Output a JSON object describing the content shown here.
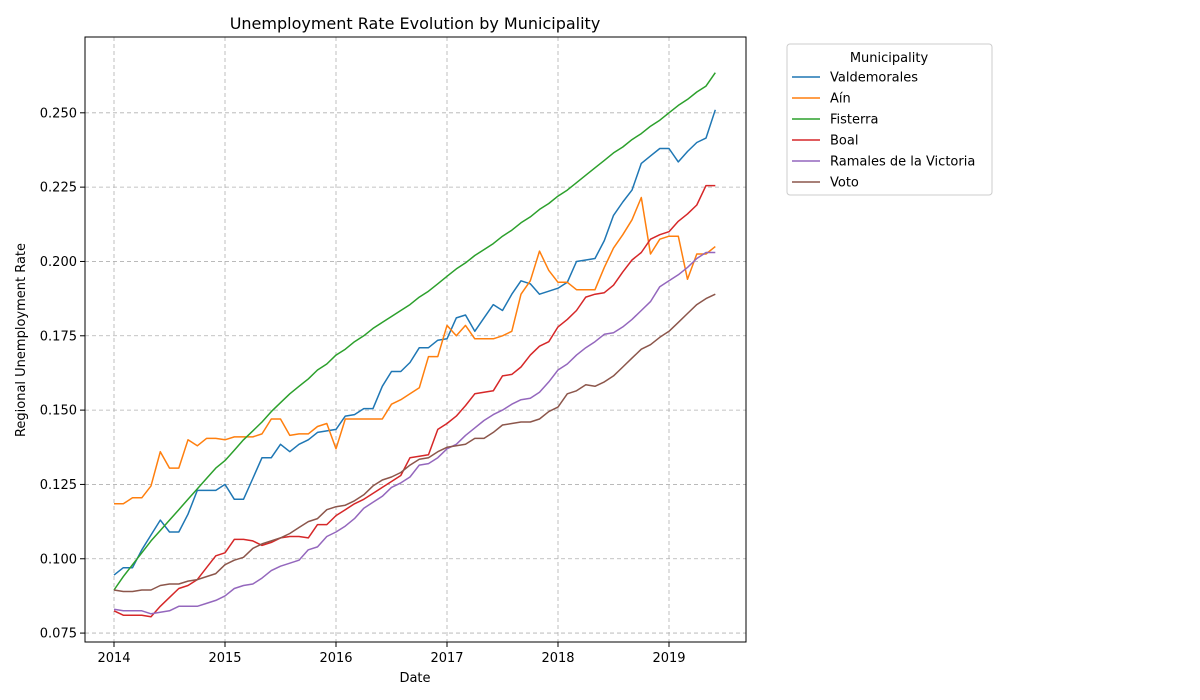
{
  "chart_data": {
    "type": "line",
    "title": "Unemployment Rate Evolution by Municipality",
    "xlabel": "Date",
    "ylabel": "Regional Unemployment Rate",
    "x_start": "2014-01",
    "x_end": "2019-06",
    "x_ticks": [
      "2014",
      "2015",
      "2016",
      "2017",
      "2018",
      "2019"
    ],
    "y_ticks": [
      "0.075",
      "0.100",
      "0.125",
      "0.150",
      "0.175",
      "0.200",
      "0.225",
      "0.250"
    ],
    "ylim": [
      0.072,
      0.2755
    ],
    "grid": true,
    "legend": {
      "title": "Municipality",
      "position": "outside-right"
    },
    "series": [
      {
        "name": "Valdemorales",
        "color": "#1f77b4",
        "values": [
          0.0945,
          0.097,
          0.097,
          0.103,
          0.108,
          0.113,
          0.109,
          0.109,
          0.115,
          0.123,
          0.123,
          0.123,
          0.125,
          0.12,
          0.12,
          0.127,
          0.134,
          0.134,
          0.1385,
          0.136,
          0.1385,
          0.14,
          0.1425,
          0.143,
          0.1435,
          0.148,
          0.1485,
          0.1505,
          0.1505,
          0.158,
          0.163,
          0.163,
          0.166,
          0.171,
          0.171,
          0.1735,
          0.174,
          0.181,
          0.182,
          0.1765,
          0.181,
          0.1855,
          0.1835,
          0.189,
          0.1935,
          0.1925,
          0.189,
          0.19,
          0.191,
          0.193,
          0.2,
          0.2005,
          0.201,
          0.207,
          0.2155,
          0.22,
          0.224,
          0.233,
          0.2355,
          0.238,
          0.238,
          0.2335,
          0.237,
          0.24,
          0.2415,
          0.251
        ]
      },
      {
        "name": "Aín",
        "color": "#ff7f0e",
        "values": [
          0.1185,
          0.1185,
          0.1205,
          0.1205,
          0.1245,
          0.136,
          0.1305,
          0.1305,
          0.14,
          0.138,
          0.1405,
          0.1405,
          0.14,
          0.141,
          0.141,
          0.141,
          0.142,
          0.147,
          0.147,
          0.1415,
          0.142,
          0.142,
          0.1445,
          0.1455,
          0.137,
          0.147,
          0.147,
          0.147,
          0.147,
          0.147,
          0.152,
          0.1535,
          0.1555,
          0.1575,
          0.168,
          0.168,
          0.1785,
          0.175,
          0.1785,
          0.174,
          0.174,
          0.174,
          0.175,
          0.1765,
          0.189,
          0.1935,
          0.2035,
          0.197,
          0.193,
          0.193,
          0.1905,
          0.1905,
          0.1905,
          0.198,
          0.2045,
          0.209,
          0.214,
          0.2215,
          0.2025,
          0.2075,
          0.2085,
          0.2085,
          0.194,
          0.2025,
          0.2025,
          0.205
        ]
      },
      {
        "name": "Fisterra",
        "color": "#2ca02c",
        "values": [
          0.0895,
          0.094,
          0.098,
          0.102,
          0.106,
          0.1095,
          0.113,
          0.1165,
          0.12,
          0.1235,
          0.127,
          0.1305,
          0.133,
          0.1365,
          0.14,
          0.143,
          0.146,
          0.1495,
          0.1525,
          0.1555,
          0.158,
          0.1605,
          0.1635,
          0.1655,
          0.1685,
          0.1705,
          0.173,
          0.175,
          0.1775,
          0.1795,
          0.1815,
          0.1835,
          0.1855,
          0.188,
          0.19,
          0.1925,
          0.195,
          0.1975,
          0.1995,
          0.202,
          0.204,
          0.206,
          0.2085,
          0.2105,
          0.213,
          0.215,
          0.2175,
          0.2195,
          0.222,
          0.224,
          0.2265,
          0.229,
          0.2315,
          0.234,
          0.2365,
          0.2385,
          0.241,
          0.243,
          0.2455,
          0.2475,
          0.25,
          0.2525,
          0.2545,
          0.257,
          0.259,
          0.2635
        ]
      },
      {
        "name": "Boal",
        "color": "#d62728",
        "values": [
          0.0825,
          0.081,
          0.081,
          0.081,
          0.0805,
          0.084,
          0.087,
          0.09,
          0.091,
          0.093,
          0.097,
          0.101,
          0.102,
          0.1065,
          0.1065,
          0.106,
          0.1045,
          0.1055,
          0.107,
          0.1075,
          0.1075,
          0.107,
          0.1115,
          0.1115,
          0.1145,
          0.1165,
          0.1185,
          0.12,
          0.122,
          0.124,
          0.126,
          0.128,
          0.134,
          0.1345,
          0.135,
          0.1435,
          0.1455,
          0.148,
          0.1515,
          0.1555,
          0.156,
          0.1565,
          0.1615,
          0.162,
          0.1645,
          0.1685,
          0.1715,
          0.173,
          0.178,
          0.1805,
          0.1835,
          0.188,
          0.189,
          0.1895,
          0.192,
          0.1965,
          0.2005,
          0.203,
          0.2075,
          0.209,
          0.21,
          0.2135,
          0.216,
          0.219,
          0.2255,
          0.2255
        ]
      },
      {
        "name": "Ramales de la Victoria",
        "color": "#9467bd",
        "values": [
          0.083,
          0.0825,
          0.0825,
          0.0825,
          0.0815,
          0.082,
          0.0825,
          0.084,
          0.084,
          0.084,
          0.085,
          0.086,
          0.0875,
          0.09,
          0.091,
          0.0915,
          0.0935,
          0.096,
          0.0975,
          0.0985,
          0.0995,
          0.103,
          0.104,
          0.1075,
          0.109,
          0.111,
          0.1135,
          0.117,
          0.119,
          0.121,
          0.124,
          0.1255,
          0.1275,
          0.1315,
          0.132,
          0.134,
          0.137,
          0.1385,
          0.1415,
          0.144,
          0.1465,
          0.1485,
          0.15,
          0.152,
          0.1535,
          0.154,
          0.156,
          0.1595,
          0.1635,
          0.1655,
          0.1685,
          0.171,
          0.173,
          0.1755,
          0.176,
          0.178,
          0.1805,
          0.1835,
          0.1865,
          0.1915,
          0.1935,
          0.1955,
          0.198,
          0.201,
          0.203,
          0.203
        ]
      },
      {
        "name": "Voto",
        "color": "#8c564b",
        "values": [
          0.0895,
          0.089,
          0.089,
          0.0895,
          0.0895,
          0.091,
          0.0915,
          0.0915,
          0.0925,
          0.093,
          0.094,
          0.095,
          0.098,
          0.0995,
          0.1005,
          0.1035,
          0.105,
          0.106,
          0.107,
          0.1085,
          0.1105,
          0.1125,
          0.1135,
          0.1165,
          0.1175,
          0.118,
          0.1195,
          0.1215,
          0.1245,
          0.1265,
          0.1275,
          0.129,
          0.1315,
          0.1335,
          0.134,
          0.136,
          0.1375,
          0.138,
          0.1385,
          0.1405,
          0.1405,
          0.1425,
          0.145,
          0.1455,
          0.146,
          0.146,
          0.147,
          0.1495,
          0.151,
          0.1555,
          0.1565,
          0.1585,
          0.158,
          0.1595,
          0.1615,
          0.1645,
          0.1675,
          0.1705,
          0.172,
          0.1745,
          0.1765,
          0.1795,
          0.1825,
          0.1855,
          0.1875,
          0.189
        ]
      }
    ]
  }
}
